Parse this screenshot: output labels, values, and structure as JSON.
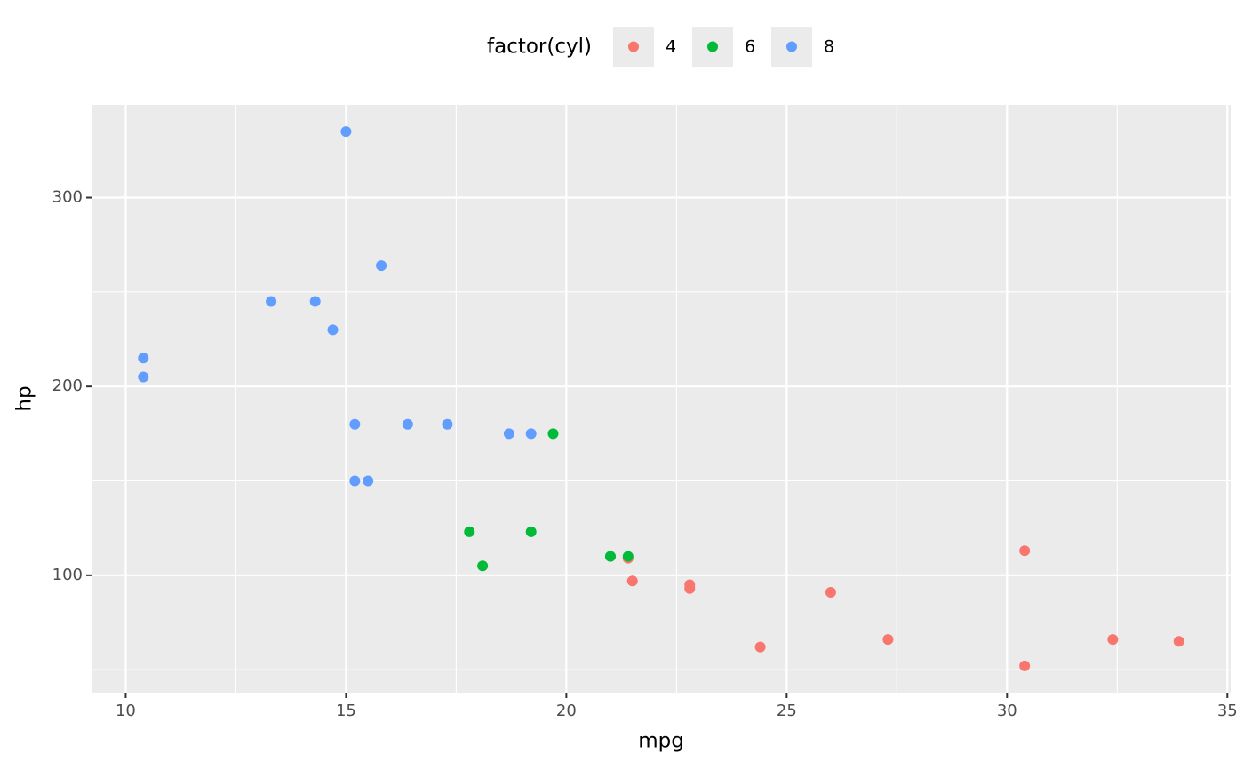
{
  "chart_data": {
    "type": "scatter",
    "xlabel": "mpg",
    "ylabel": "hp",
    "legend_title": "factor(cyl)",
    "legend_position": "top",
    "xlim": [
      9.225,
      35.075
    ],
    "ylim": [
      37.85,
      349.15
    ],
    "xticks": [
      10,
      15,
      20,
      25,
      30,
      35
    ],
    "yticks": [
      100,
      200,
      300
    ],
    "xminor": [
      12.5,
      17.5,
      22.5,
      27.5,
      32.5
    ],
    "yminor": [
      50,
      150,
      250
    ],
    "grid": true,
    "series": [
      {
        "name": "4",
        "color": "#F8766D",
        "x": [
          22.8,
          24.4,
          22.8,
          32.4,
          30.4,
          33.9,
          21.5,
          27.3,
          26,
          30.4,
          21.4
        ],
        "y": [
          93,
          62,
          95,
          66,
          52,
          65,
          97,
          66,
          91,
          113,
          109
        ]
      },
      {
        "name": "6",
        "color": "#00BA38",
        "x": [
          21,
          21,
          21.4,
          18.1,
          19.2,
          17.8,
          19.7
        ],
        "y": [
          110,
          110,
          110,
          105,
          123,
          123,
          175
        ]
      },
      {
        "name": "8",
        "color": "#619CFF",
        "x": [
          18.7,
          14.3,
          16.4,
          17.3,
          15.2,
          10.4,
          10.4,
          14.7,
          15.5,
          15.2,
          13.3,
          19.2,
          15.8,
          15
        ],
        "y": [
          175,
          245,
          180,
          180,
          180,
          205,
          215,
          230,
          150,
          150,
          245,
          175,
          264,
          335
        ]
      }
    ]
  }
}
